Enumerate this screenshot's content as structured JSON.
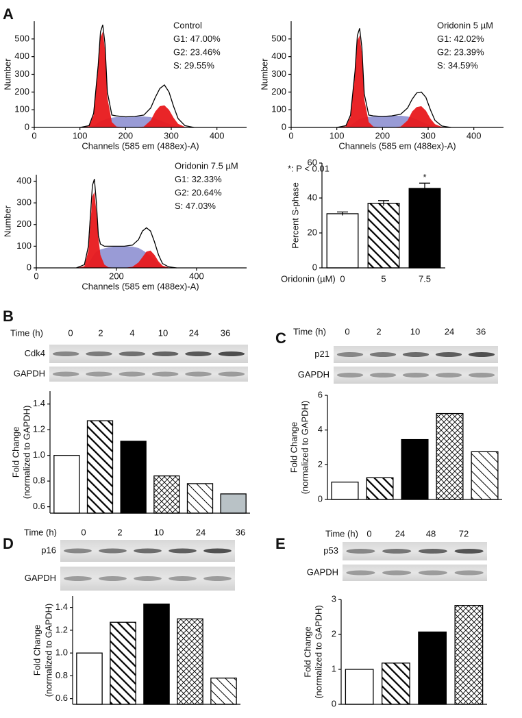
{
  "panel_labels": [
    "A",
    "B",
    "C",
    "D",
    "E"
  ],
  "blots": [
    {
      "time_label": "Time (h)",
      "lanes": [
        "0",
        "2",
        "4",
        "10",
        "24",
        "36"
      ],
      "rows": [
        "Cdk4",
        "GAPDH"
      ]
    },
    {
      "time_label": "Time (h)",
      "lanes": [
        "0",
        "2",
        "10",
        "24",
        "36"
      ],
      "rows": [
        "p21",
        "GAPDH"
      ]
    },
    {
      "time_label": "Time (h)",
      "lanes": [
        "0",
        "2",
        "10",
        "24",
        "36"
      ],
      "rows": [
        "p16",
        "GAPDH"
      ]
    },
    {
      "time_label": "Time (h)",
      "lanes": [
        "0",
        "24",
        "48",
        "72"
      ],
      "rows": [
        "p53",
        "GAPDH"
      ]
    }
  ],
  "chart_data": [
    {
      "type": "area",
      "xlabel": "Channels (585 em (488ex)-A)",
      "ylabel": "Number",
      "annotations": [
        "Control",
        "G1: 47.00%",
        "G2: 23.46%",
        "S: 29.55%"
      ],
      "xlim": [
        0,
        465
      ],
      "xticks": [
        0,
        100,
        200,
        300,
        400
      ],
      "ylim": [
        0,
        600
      ],
      "yticks": [
        0,
        100,
        200,
        300,
        400,
        500
      ],
      "x": [
        100,
        120,
        130,
        140,
        145,
        150,
        155,
        160,
        170,
        180,
        200,
        220,
        240,
        255,
        265,
        275,
        285,
        295,
        305,
        315,
        330,
        350
      ],
      "series": [
        {
          "color": "#7f82cc",
          "fill": true,
          "values": [
            0,
            2,
            10,
            25,
            35,
            40,
            45,
            50,
            55,
            58,
            60,
            62,
            62,
            58,
            50,
            40,
            30,
            20,
            10,
            4,
            0,
            0
          ]
        },
        {
          "color": "#e8191c",
          "fill": true,
          "values": [
            0,
            6,
            70,
            330,
            510,
            540,
            440,
            170,
            30,
            5,
            0,
            0,
            0,
            0,
            0,
            0,
            0,
            0,
            0,
            0,
            0,
            0
          ]
        },
        {
          "color": "#e8191c",
          "fill": true,
          "values": [
            0,
            0,
            0,
            0,
            0,
            0,
            0,
            0,
            0,
            0,
            0,
            0,
            5,
            40,
            90,
            120,
            125,
            100,
            55,
            20,
            3,
            0
          ]
        },
        {
          "color": "#000000",
          "fill": false,
          "values": [
            0,
            10,
            80,
            350,
            540,
            580,
            470,
            200,
            70,
            65,
            60,
            62,
            70,
            110,
            170,
            220,
            240,
            200,
            120,
            50,
            10,
            0
          ]
        }
      ]
    },
    {
      "type": "area",
      "xlabel": "Channels (585 em (488ex)-A)",
      "ylabel": "Number",
      "annotations": [
        "Oridonin 5 µM",
        "G1: 42.02%",
        "G2: 23.39%",
        "S: 34.59%"
      ],
      "xlim": [
        0,
        465
      ],
      "xticks": [
        0,
        100,
        200,
        300,
        400
      ],
      "ylim": [
        0,
        600
      ],
      "yticks": [
        0,
        100,
        200,
        300,
        400,
        500
      ],
      "x": [
        100,
        120,
        130,
        140,
        145,
        150,
        155,
        160,
        170,
        180,
        200,
        220,
        240,
        255,
        265,
        275,
        285,
        295,
        305,
        315,
        330,
        350
      ],
      "series": [
        {
          "color": "#7f82cc",
          "fill": true,
          "values": [
            0,
            2,
            12,
            30,
            40,
            48,
            52,
            56,
            60,
            62,
            65,
            66,
            66,
            62,
            55,
            45,
            33,
            22,
            12,
            4,
            0,
            0
          ]
        },
        {
          "color": "#e8191c",
          "fill": true,
          "values": [
            0,
            6,
            60,
            300,
            490,
            520,
            420,
            160,
            30,
            5,
            0,
            0,
            0,
            0,
            0,
            0,
            0,
            0,
            0,
            0,
            0,
            0
          ]
        },
        {
          "color": "#e8191c",
          "fill": true,
          "values": [
            0,
            0,
            0,
            0,
            0,
            0,
            0,
            0,
            0,
            0,
            0,
            0,
            5,
            40,
            90,
            115,
            120,
            95,
            50,
            18,
            3,
            0
          ]
        },
        {
          "color": "#000000",
          "fill": false,
          "values": [
            0,
            10,
            70,
            320,
            520,
            560,
            450,
            190,
            70,
            65,
            62,
            65,
            75,
            110,
            160,
            195,
            200,
            170,
            100,
            40,
            8,
            0
          ]
        }
      ]
    },
    {
      "type": "area",
      "xlabel": "Channels (585 em (488ex)-A)",
      "ylabel": "Number",
      "annotations": [
        "Oridonin 7.5 µM",
        "G1: 32.33%",
        "G2: 20.64%",
        "S: 47.03%"
      ],
      "xlim": [
        0,
        525
      ],
      "xticks": [
        0,
        200,
        400
      ],
      "ylim": [
        0,
        430
      ],
      "yticks": [
        0,
        100,
        200,
        300,
        400
      ],
      "x": [
        100,
        120,
        130,
        140,
        145,
        150,
        155,
        160,
        170,
        180,
        200,
        220,
        240,
        255,
        265,
        275,
        285,
        295,
        305,
        315,
        330,
        350
      ],
      "series": [
        {
          "color": "#7f82cc",
          "fill": true,
          "values": [
            0,
            3,
            20,
            50,
            65,
            75,
            80,
            85,
            90,
            95,
            100,
            100,
            98,
            92,
            82,
            70,
            55,
            38,
            20,
            8,
            0,
            0
          ]
        },
        {
          "color": "#e8191c",
          "fill": true,
          "values": [
            0,
            8,
            80,
            330,
            350,
            260,
            140,
            60,
            15,
            3,
            0,
            0,
            0,
            0,
            0,
            0,
            0,
            0,
            0,
            0,
            0,
            0
          ]
        },
        {
          "color": "#e8191c",
          "fill": true,
          "values": [
            0,
            0,
            0,
            0,
            0,
            0,
            0,
            0,
            0,
            0,
            0,
            0,
            5,
            25,
            50,
            75,
            80,
            60,
            30,
            10,
            2,
            0
          ]
        },
        {
          "color": "#000000",
          "fill": false,
          "values": [
            0,
            15,
            100,
            380,
            410,
            300,
            150,
            110,
            100,
            100,
            100,
            100,
            105,
            130,
            170,
            185,
            170,
            120,
            60,
            20,
            5,
            0
          ]
        }
      ]
    },
    {
      "type": "bar",
      "xlabel": "Oridonin (µM)",
      "ylabel": "Percent S-phase",
      "annotations": [
        "*: P < 0.01",
        "*"
      ],
      "categories": [
        "0",
        "5",
        "7.5"
      ],
      "values": [
        31,
        37,
        45.5
      ],
      "errors": [
        1,
        1.5,
        3
      ],
      "fills": [
        "#ffffff",
        "hatch",
        "#000000"
      ],
      "ylim": [
        0,
        60
      ],
      "yticks": [
        0,
        20,
        40,
        60
      ]
    },
    {
      "type": "bar",
      "ylabel": [
        "Fold Change",
        "(normalized to GAPDH)"
      ],
      "values": [
        1.0,
        1.27,
        1.11,
        0.84,
        0.78,
        0.7
      ],
      "fills": [
        "#ffffff",
        "hatch",
        "#000000",
        "crosshatch",
        "hatch-thin",
        "#b9c2c6"
      ],
      "ylim": [
        0.55,
        1.5
      ],
      "yticks": [
        {
          "value": 0.6,
          "label": "0.6"
        },
        {
          "value": 0.8,
          "label": "0.8"
        },
        {
          "value": 1.0,
          "label": "1.0"
        },
        {
          "value": 1.2,
          "label": "1.2"
        },
        {
          "value": 1.4,
          "label": "1.4"
        }
      ]
    },
    {
      "type": "bar",
      "ylabel": [
        "Fold Change",
        "(normalized to GAPDH)"
      ],
      "values": [
        1.0,
        1.25,
        3.45,
        4.95,
        2.75
      ],
      "fills": [
        "#ffffff",
        "hatch",
        "#000000",
        "crosshatch",
        "hatch-thin"
      ],
      "ylim": [
        0,
        6
      ],
      "yticks": [
        0,
        2,
        4,
        6
      ]
    },
    {
      "type": "bar",
      "ylabel": [
        "Fold Change",
        "(normalized to GAPDH)"
      ],
      "values": [
        1.0,
        1.27,
        1.43,
        1.3,
        0.78
      ],
      "fills": [
        "#ffffff",
        "hatch",
        "#000000",
        "crosshatch",
        "hatch-thin"
      ],
      "ylim": [
        0.55,
        1.5
      ],
      "yticks": [
        {
          "value": 0.6,
          "label": "0.6"
        },
        {
          "value": 0.8,
          "label": "0.8"
        },
        {
          "value": 1.0,
          "label": "1.0"
        },
        {
          "value": 1.2,
          "label": "1.2"
        },
        {
          "value": 1.4,
          "label": "1.4"
        }
      ]
    },
    {
      "type": "bar",
      "ylabel": [
        "Fold Change",
        "(normalized to GAPDH)"
      ],
      "values": [
        1.0,
        1.18,
        2.07,
        2.83
      ],
      "fills": [
        "#ffffff",
        "hatch",
        "#000000",
        "crosshatch"
      ],
      "ylim": [
        0,
        3
      ],
      "yticks": [
        0,
        1,
        2,
        3
      ]
    }
  ]
}
